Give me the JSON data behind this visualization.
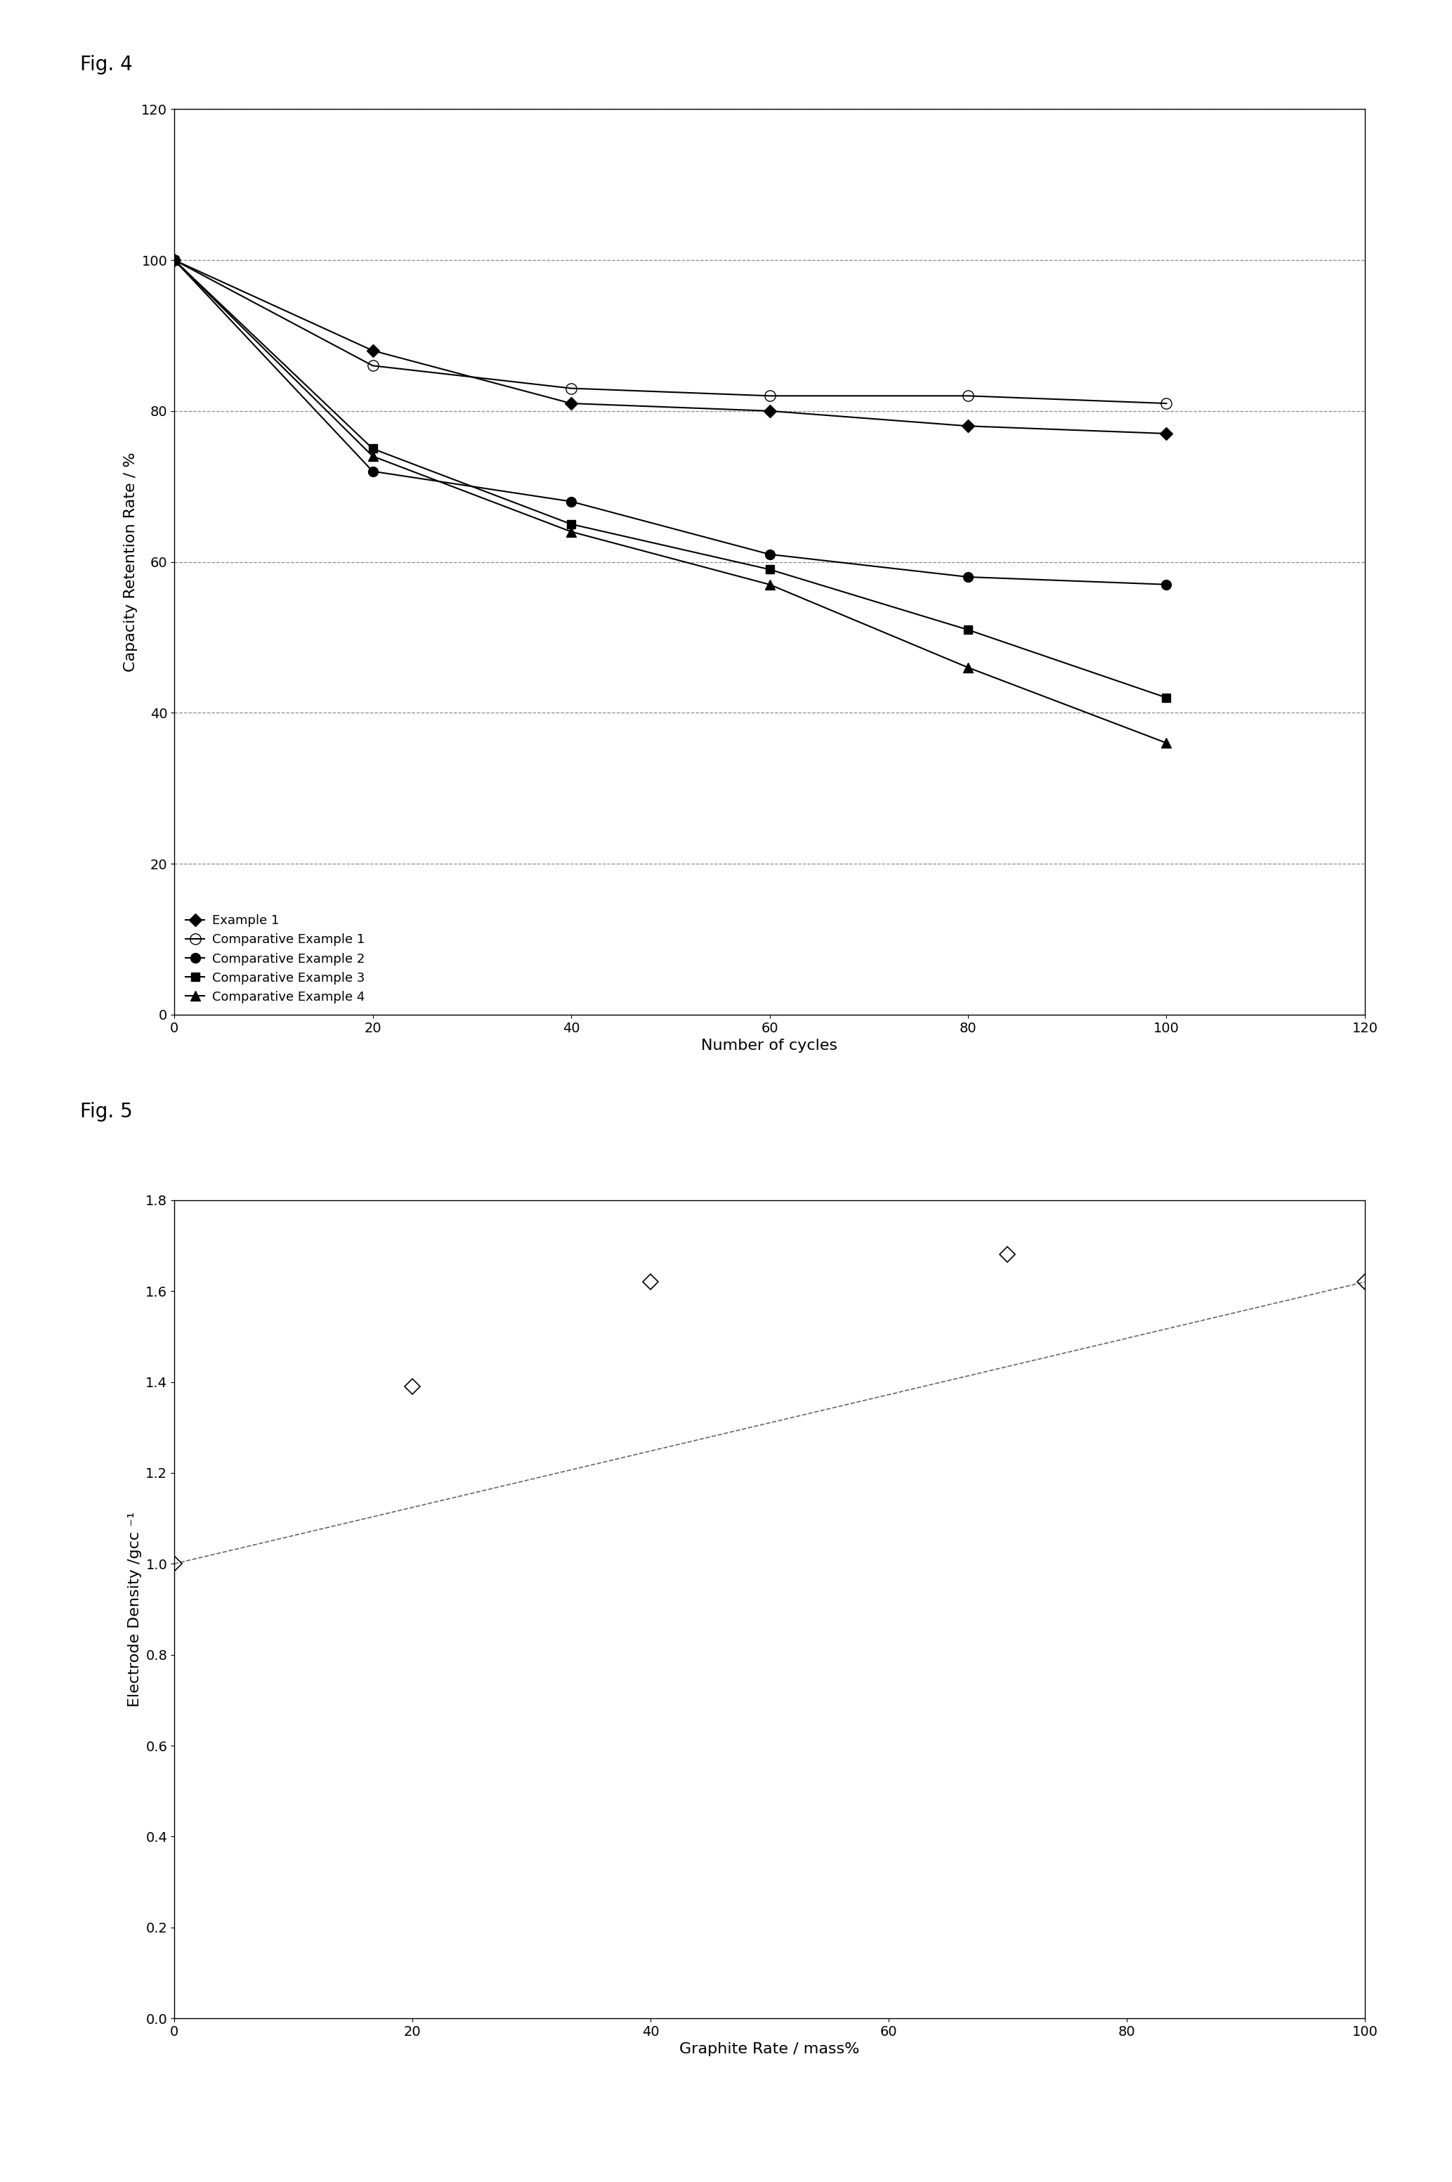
{
  "fig4": {
    "title": "Fig. 4",
    "xlabel": "Number of cycles",
    "ylabel": "Capacity Retention Rate / %",
    "xlim": [
      0,
      120
    ],
    "ylim": [
      0,
      120
    ],
    "xticks": [
      0,
      20,
      40,
      60,
      80,
      100,
      120
    ],
    "yticks": [
      0,
      20,
      40,
      60,
      80,
      100,
      120
    ],
    "series": [
      {
        "label": "Example 1",
        "x": [
          0,
          20,
          40,
          60,
          80,
          100
        ],
        "y": [
          100,
          88,
          81,
          80,
          78,
          77
        ],
        "marker": "D",
        "color": "#000000",
        "fillstyle": "full",
        "markersize": 9,
        "linestyle": "-",
        "linewidth": 1.5
      },
      {
        "label": "Comparative Example 1",
        "x": [
          0,
          20,
          40,
          60,
          80,
          100
        ],
        "y": [
          100,
          86,
          83,
          82,
          82,
          81
        ],
        "marker": "o",
        "color": "#000000",
        "fillstyle": "none",
        "markersize": 11,
        "linestyle": "-",
        "linewidth": 1.5
      },
      {
        "label": "Comparative Example 2",
        "x": [
          0,
          20,
          40,
          60,
          80,
          100
        ],
        "y": [
          100,
          72,
          68,
          61,
          58,
          57
        ],
        "marker": "o",
        "color": "#000000",
        "fillstyle": "full",
        "markersize": 10,
        "linestyle": "-",
        "linewidth": 1.5
      },
      {
        "label": "Comparative Example 3",
        "x": [
          0,
          20,
          40,
          60,
          80,
          100
        ],
        "y": [
          100,
          75,
          65,
          59,
          51,
          42
        ],
        "marker": "s",
        "color": "#000000",
        "fillstyle": "full",
        "markersize": 9,
        "linestyle": "-",
        "linewidth": 1.5
      },
      {
        "label": "Comparative Example 4",
        "x": [
          0,
          20,
          40,
          60,
          80,
          100
        ],
        "y": [
          100,
          74,
          64,
          57,
          46,
          36
        ],
        "marker": "^",
        "color": "#000000",
        "fillstyle": "full",
        "markersize": 10,
        "linestyle": "-",
        "linewidth": 1.5
      }
    ]
  },
  "fig5": {
    "title": "Fig. 5",
    "xlabel": "Graphite Rate / mass%",
    "ylabel": "Electrode Density /gcc ⁻¹",
    "xlim": [
      0,
      100
    ],
    "ylim": [
      0,
      1.8
    ],
    "xticks": [
      0,
      20,
      40,
      60,
      80,
      100
    ],
    "yticks": [
      0,
      0.2,
      0.4,
      0.6,
      0.8,
      1.0,
      1.2,
      1.4,
      1.6,
      1.8
    ],
    "scatter_x": [
      0,
      20,
      40,
      70,
      100
    ],
    "scatter_y": [
      1.0,
      1.39,
      1.62,
      1.68,
      1.62
    ],
    "trendline_x": [
      0,
      100
    ],
    "trendline_y": [
      1.0,
      1.62
    ],
    "marker_color": "#000000",
    "markersize": 11
  },
  "background_color": "#ffffff",
  "fig_label_fontsize": 20,
  "axis_label_fontsize": 16,
  "tick_fontsize": 14,
  "legend_fontsize": 13
}
